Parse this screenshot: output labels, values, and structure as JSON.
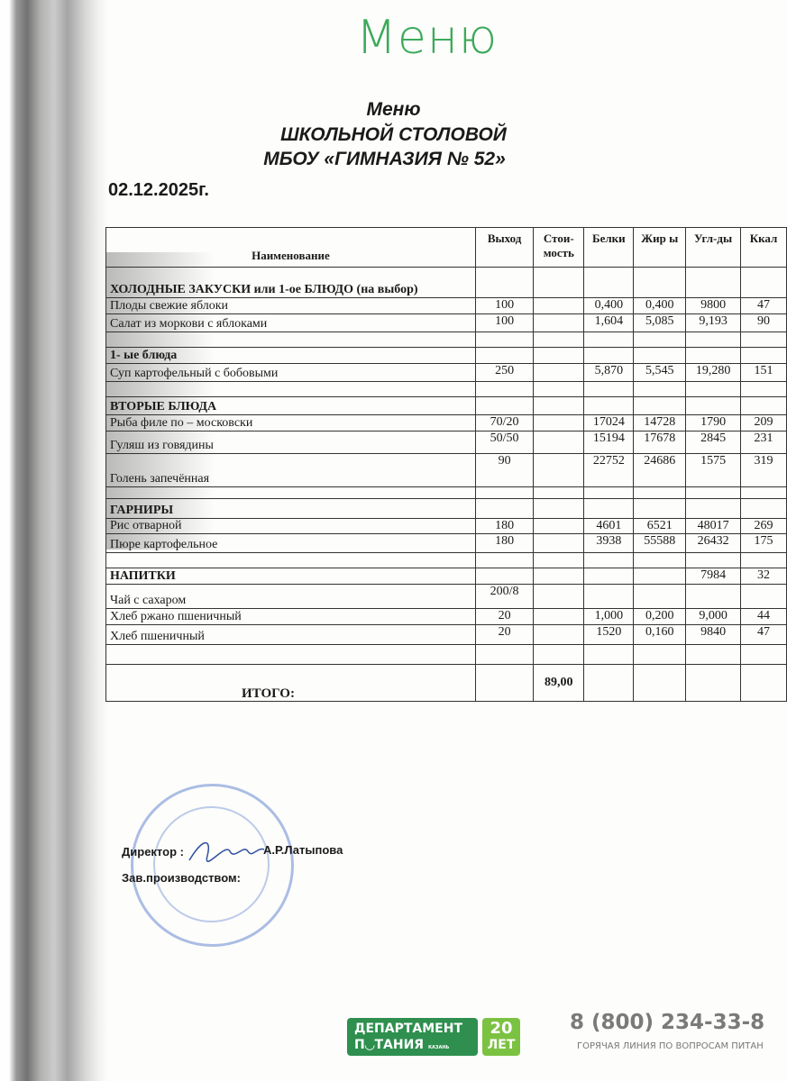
{
  "handwritten_title": "Меню",
  "title_lines": [
    "Меню",
    "ШКОЛЬНОЙ СТОЛОВОЙ",
    "МБОУ «ГИМНАЗИЯ № 52»"
  ],
  "date": "02.12.2025г.",
  "table": {
    "headers": [
      "Наименование",
      "Выход",
      "Стои-мость",
      "Белки",
      "Жир ы",
      "Угл-ды",
      "Ккал"
    ],
    "rows": [
      {
        "type": "section",
        "name": "ХОЛОДНЫЕ ЗАКУСКИ или 1-ое БЛЮДО (на выбор)",
        "cells": [
          "",
          "",
          "",
          "",
          "",
          ""
        ]
      },
      {
        "type": "item",
        "name": "Плоды свежие яблоки",
        "cells": [
          "100",
          "",
          "0,400",
          "0,400",
          "9800",
          "47"
        ]
      },
      {
        "type": "item",
        "name": "Салат из моркови с яблоками",
        "cells": [
          "100",
          "",
          "1,604",
          "5,085",
          "9,193",
          "90"
        ]
      },
      {
        "type": "empty",
        "name": "",
        "cells": [
          "",
          "",
          "",
          "",
          "",
          ""
        ]
      },
      {
        "type": "section",
        "name": "1-   ые блюда",
        "cells": [
          "",
          "",
          "",
          "",
          "",
          ""
        ]
      },
      {
        "type": "item",
        "name": "Суп картофельный с бобовыми",
        "cells": [
          "250",
          "",
          "5,870",
          "5,545",
          "19,280",
          "151"
        ]
      },
      {
        "type": "empty",
        "name": "",
        "cells": [
          "",
          "",
          "",
          "",
          "",
          ""
        ]
      },
      {
        "type": "section",
        "name": "ВТОРЫЕ БЛЮДА",
        "cells": [
          "",
          "",
          "",
          "",
          "",
          ""
        ]
      },
      {
        "type": "item",
        "name": "Рыба филе по – московски",
        "cells": [
          "70/20",
          "",
          "17024",
          "14728",
          "1790",
          "209"
        ]
      },
      {
        "type": "item",
        "name": "Гуляш из говядины",
        "cells": [
          "50/50",
          "",
          "15194",
          "17678",
          "2845",
          "231"
        ]
      },
      {
        "type": "item",
        "name": "Голень запечённая",
        "cells": [
          "90",
          "",
          "22752",
          "24686",
          "1575",
          "319"
        ]
      },
      {
        "type": "empty",
        "name": "",
        "cells": [
          "",
          "",
          "",
          "",
          "",
          ""
        ]
      },
      {
        "type": "section",
        "name": "ГАРНИРЫ",
        "cells": [
          "",
          "",
          "",
          "",
          "",
          ""
        ]
      },
      {
        "type": "item",
        "name": "Рис отварной",
        "cells": [
          "180",
          "",
          "4601",
          "6521",
          "48017",
          "269"
        ]
      },
      {
        "type": "item",
        "name": "Пюре картофельное",
        "cells": [
          "180",
          "",
          "3938",
          "55588",
          "26432",
          "175"
        ]
      },
      {
        "type": "empty",
        "name": "",
        "cells": [
          "",
          "",
          "",
          "",
          "",
          ""
        ]
      },
      {
        "type": "section",
        "name": "НАПИТКИ",
        "cells": [
          "",
          "",
          "",
          "",
          "7984",
          "32"
        ]
      },
      {
        "type": "item",
        "name": "Чай с сахаром",
        "cells": [
          "200/8",
          "",
          "",
          "",
          "",
          ""
        ]
      },
      {
        "type": "item",
        "name": "Хлеб ржано пшеничный",
        "cells": [
          "20",
          "",
          "1,000",
          "0,200",
          "9,000",
          "44"
        ]
      },
      {
        "type": "item",
        "name": "Хлеб пшеничный",
        "cells": [
          "20",
          "",
          "1520",
          "0,160",
          "9840",
          "47"
        ]
      },
      {
        "type": "empty",
        "name": "",
        "cells": [
          "",
          "",
          "",
          "",
          "",
          ""
        ]
      },
      {
        "type": "total",
        "name": "ИТОГО:",
        "cells": [
          "",
          "89,00",
          "",
          "",
          "",
          ""
        ]
      }
    ]
  },
  "signatures": {
    "director_label": "Директор :",
    "director_name": "А.Р.Латыпова",
    "production_label": "Зав.производством:"
  },
  "footer": {
    "logo_line1": "ДЕПАРТАМЕНТ",
    "logo_line2": "П◡ТАНИЯ",
    "logo_city": "КАЗАНЬ",
    "badge_num": "20",
    "badge_text": "ЛЕТ",
    "phone": "8 (800) 234-33-8",
    "hotline": "ГОРЯЧАЯ ЛИНИЯ ПО ВОПРОСАМ ПИТАН"
  },
  "colors": {
    "handwriting": "#3daa5a",
    "logo_green": "#2e8f4e",
    "badge_green": "#7cc242",
    "stamp_blue": "#466ec8"
  }
}
